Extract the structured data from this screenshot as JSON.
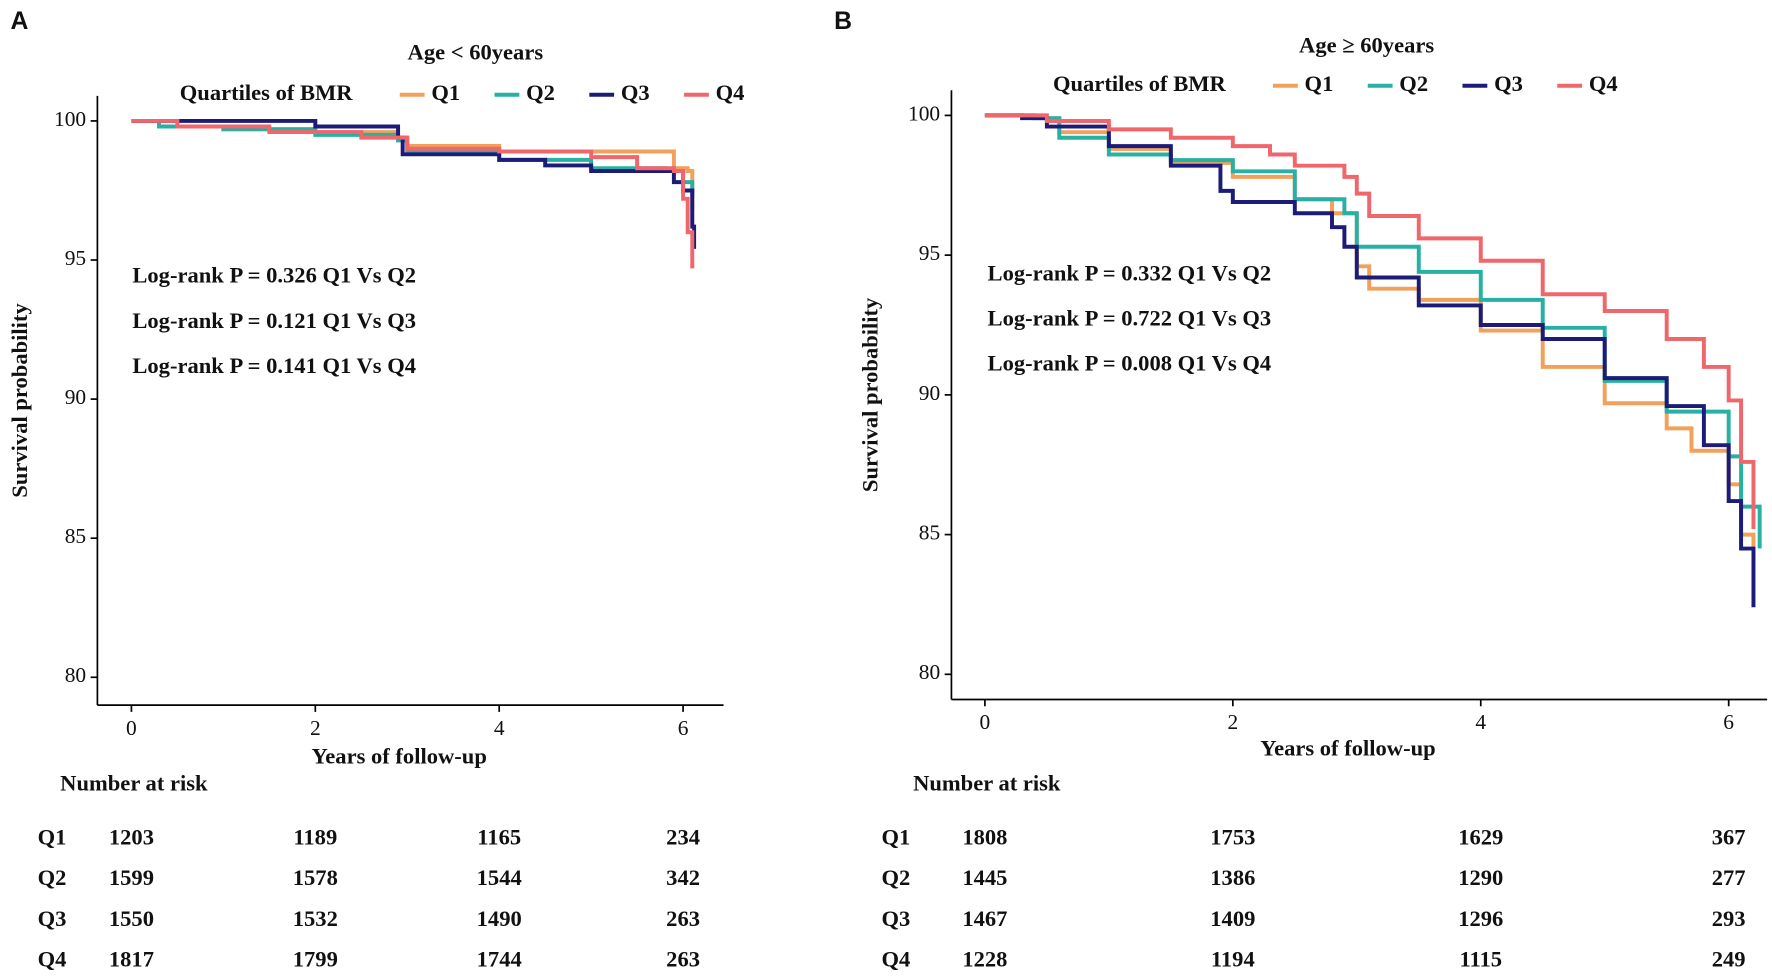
{
  "chart_data": [
    {
      "type": "line",
      "panel": "A",
      "title": "Age < 60years",
      "legend_title": "Quartiles of BMR",
      "xlabel": "Years of follow-up",
      "ylabel": "Survival probability",
      "xlim": [
        -0.37,
        6.44
      ],
      "ylim": [
        79,
        100.9
      ],
      "xticks": [
        0,
        2,
        4,
        6
      ],
      "yticks": [
        80,
        85,
        90,
        95,
        100
      ],
      "annotations": [
        "Log-rank P = 0.326  Q1 Vs Q2",
        "Log-rank P = 0.121  Q1 Vs Q3",
        "Log-rank P = 0.141  Q1 Vs Q4"
      ],
      "series": [
        {
          "name": "Q1",
          "color": "#f2a05a",
          "x": [
            0,
            0.5,
            1,
            2,
            2.9,
            3,
            4,
            5,
            5.85,
            5.9,
            6.05,
            6.1
          ],
          "values": [
            100,
            99.8,
            99.7,
            99.6,
            99.4,
            99.1,
            98.9,
            98.9,
            98.9,
            98.3,
            98.2,
            96.8
          ]
        },
        {
          "name": "Q2",
          "color": "#27b0a4",
          "x": [
            0,
            0.3,
            1,
            2,
            2.9,
            3,
            4,
            5,
            5.8,
            6,
            6.1
          ],
          "values": [
            100,
            99.8,
            99.7,
            99.5,
            99.3,
            98.9,
            98.6,
            98.3,
            98.2,
            97.8,
            97.3
          ]
        },
        {
          "name": "Q3",
          "color": "#1c1c78",
          "x": [
            0,
            1.9,
            2,
            2.9,
            2.95,
            4,
            4.5,
            5,
            5.9,
            6,
            6.1,
            6.12
          ],
          "values": [
            100,
            100,
            99.8,
            99.4,
            98.8,
            98.6,
            98.4,
            98.2,
            97.8,
            97.5,
            96.2,
            95.4
          ]
        },
        {
          "name": "Q4",
          "color": "#ef666b",
          "x": [
            0,
            0.5,
            1.5,
            2.5,
            3,
            4,
            5,
            5.5,
            5.9,
            6,
            6.05,
            6.1
          ],
          "values": [
            100,
            99.8,
            99.6,
            99.4,
            99.0,
            98.9,
            98.7,
            98.3,
            98.2,
            97.2,
            96.0,
            94.7
          ]
        }
      ],
      "risk_table": {
        "title": "Number at risk",
        "rows": [
          {
            "name": "Q1",
            "counts": [
              1203,
              1189,
              1165,
              234
            ]
          },
          {
            "name": "Q2",
            "counts": [
              1599,
              1578,
              1544,
              342
            ]
          },
          {
            "name": "Q3",
            "counts": [
              1550,
              1532,
              1490,
              263
            ]
          },
          {
            "name": "Q4",
            "counts": [
              1817,
              1799,
              1744,
              263
            ]
          }
        ]
      }
    },
    {
      "type": "line",
      "panel": "B",
      "title": "Age ≥ 60years",
      "legend_title": "Quartiles of BMR",
      "xlabel": "Years of follow-up",
      "ylabel": "Survival probability",
      "xlim": [
        -0.27,
        6.31
      ],
      "ylim": [
        79.1,
        100.9
      ],
      "xticks": [
        0,
        2,
        4,
        6
      ],
      "yticks": [
        80,
        85,
        90,
        95,
        100
      ],
      "annotations": [
        "Log-rank P = 0.332  Q1 Vs Q2",
        "Log-rank P = 0.722  Q1 Vs Q3",
        "Log-rank P = 0.008  Q1 Vs Q4"
      ],
      "series": [
        {
          "name": "Q1",
          "color": "#f2a05a",
          "x": [
            0,
            0.4,
            0.6,
            1,
            1.5,
            2,
            2.5,
            2.8,
            3.0,
            3.1,
            3.5,
            4,
            4.5,
            5,
            5.5,
            5.7,
            6,
            6.1,
            6.2
          ],
          "values": [
            100,
            99.9,
            99.4,
            98.8,
            98.3,
            97.8,
            97.0,
            96.5,
            94.6,
            93.8,
            93.4,
            92.3,
            91.0,
            89.7,
            88.8,
            88.0,
            86.8,
            85.0,
            84.2
          ]
        },
        {
          "name": "Q2",
          "color": "#27b0a4",
          "x": [
            0,
            0.4,
            0.6,
            1,
            1.5,
            2,
            2.5,
            2.9,
            3,
            3.5,
            4,
            4.5,
            5,
            5.5,
            6,
            6.1,
            6.25
          ],
          "values": [
            100,
            99.9,
            99.2,
            98.6,
            98.4,
            98.0,
            97.0,
            96.5,
            95.3,
            94.4,
            93.4,
            92.4,
            90.5,
            89.4,
            87.8,
            86.0,
            84.5
          ]
        },
        {
          "name": "Q3",
          "color": "#1c1c78",
          "x": [
            0,
            0.3,
            0.5,
            1,
            1.5,
            1.9,
            2,
            2.5,
            2.8,
            2.9,
            3,
            3.5,
            4,
            4.5,
            5,
            5.5,
            5.8,
            6,
            6.1,
            6.2
          ],
          "values": [
            100,
            99.9,
            99.6,
            98.9,
            98.2,
            97.3,
            96.9,
            96.5,
            96.0,
            95.3,
            94.2,
            93.2,
            92.5,
            92.0,
            90.6,
            89.6,
            88.2,
            86.2,
            84.5,
            82.4
          ]
        },
        {
          "name": "Q4",
          "color": "#ef666b",
          "x": [
            0,
            0.4,
            0.5,
            1,
            1.5,
            2,
            2.3,
            2.5,
            2.9,
            3,
            3.1,
            3.5,
            4,
            4.5,
            5,
            5.5,
            5.8,
            6,
            6.1,
            6.2
          ],
          "values": [
            100,
            100,
            99.8,
            99.5,
            99.2,
            98.9,
            98.6,
            98.2,
            97.8,
            97.2,
            96.4,
            95.6,
            94.8,
            93.6,
            93.0,
            92.0,
            91.0,
            89.8,
            87.6,
            85.2
          ]
        }
      ],
      "risk_table": {
        "title": "Number at risk",
        "rows": [
          {
            "name": "Q1",
            "counts": [
              1808,
              1753,
              1629,
              367
            ]
          },
          {
            "name": "Q2",
            "counts": [
              1445,
              1386,
              1290,
              277
            ]
          },
          {
            "name": "Q3",
            "counts": [
              1467,
              1409,
              1296,
              293
            ]
          },
          {
            "name": "Q4",
            "counts": [
              1228,
              1194,
              1115,
              249
            ]
          }
        ]
      }
    }
  ]
}
